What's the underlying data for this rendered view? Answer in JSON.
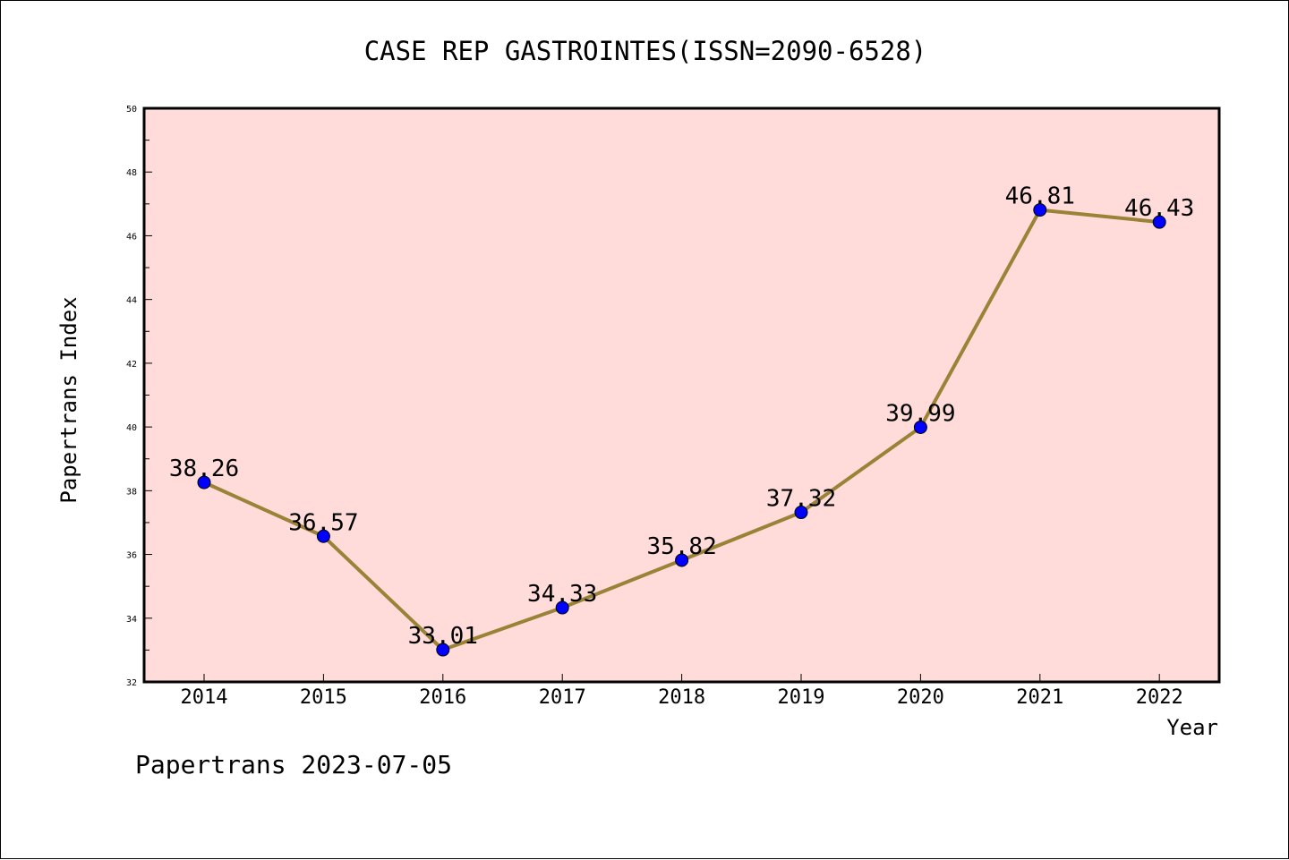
{
  "chart_data": {
    "type": "line",
    "title": "CASE REP GASTROINTES(ISSN=2090-6528)",
    "xlabel": "Year",
    "ylabel": "Papertrans Index",
    "categories": [
      "2014",
      "2015",
      "2016",
      "2017",
      "2018",
      "2019",
      "2020",
      "2021",
      "2022"
    ],
    "series": [
      {
        "values": [
          38.26,
          36.57,
          33.01,
          34.33,
          35.82,
          37.32,
          39.99,
          46.81,
          46.43
        ],
        "labels": [
          "38.26",
          "36.57",
          "33.01",
          "34.33",
          "35.82",
          "37.32",
          "39.99",
          "46.81",
          "46.43"
        ]
      }
    ],
    "ylim": [
      32,
      50
    ],
    "yticks": [
      "32",
      "34",
      "36",
      "38",
      "40",
      "42",
      "44",
      "46",
      "48",
      "50"
    ],
    "grid": false,
    "legend": "none",
    "colors": {
      "plot_background": "#ffdcda",
      "line": "#9a8236",
      "marker": "#0000ff"
    }
  },
  "footer": "Papertrans 2023-07-05"
}
